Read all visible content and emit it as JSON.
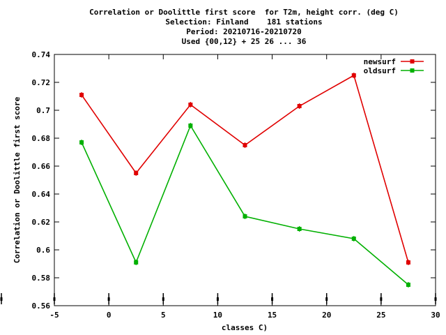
{
  "chart_data": {
    "type": "line",
    "title_lines": [
      "Correlation or Doolittle first score  for T2m, height corr. (deg C)",
      "Selection: Finland    181 stations",
      "Period: 20210716-20210720",
      "Used {00,12} + 25 26 ... 36"
    ],
    "xlabel": "classes C)",
    "ylabel": "Correlation or Doolittle first score",
    "xlim": [
      -5,
      30
    ],
    "ylim": [
      0.56,
      0.74
    ],
    "x_ticks": [
      "-5",
      "0",
      "5",
      "10",
      "15",
      "20",
      "25",
      "30"
    ],
    "y_ticks": [
      "0.56",
      "0.58",
      "0.6",
      "0.62",
      "0.64",
      "0.66",
      "0.68",
      "0.7",
      "0.72",
      "0.74"
    ],
    "legend_position": "top-right",
    "grid": false,
    "x": [
      -2.5,
      2.5,
      7.5,
      12.5,
      17.5,
      22.5,
      27.5
    ],
    "series": [
      {
        "name": "newsurf",
        "color": "#e00000",
        "values": [
          0.711,
          0.655,
          0.704,
          0.675,
          0.703,
          0.725,
          0.591
        ]
      },
      {
        "name": "oldsurf",
        "color": "#00b000",
        "values": [
          0.677,
          0.591,
          0.689,
          0.624,
          0.615,
          0.608,
          0.575
        ]
      }
    ]
  }
}
